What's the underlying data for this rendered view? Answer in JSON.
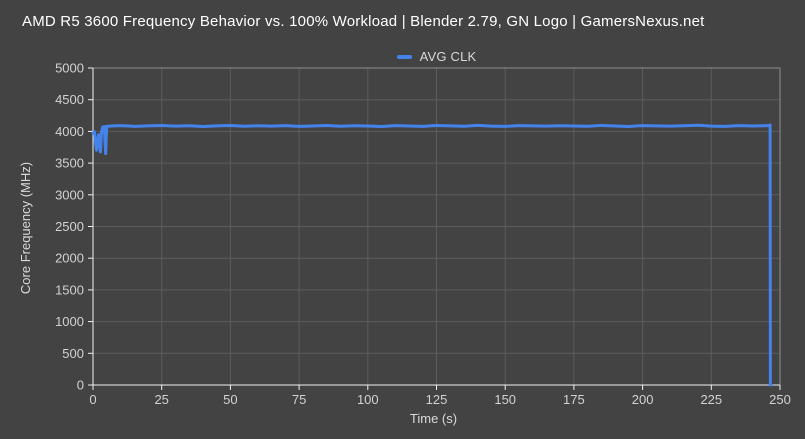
{
  "colors": {
    "background": "#434343",
    "line": "#4583ec",
    "grid": "#5c5c5c",
    "axis_line": "#f2f2f2",
    "plot_border": "#8f8f8f",
    "title_text": "#ffffff",
    "label_text": "#d2d2d2",
    "legend_text": "#d9d9d9"
  },
  "chart_data": {
    "type": "line",
    "title": "AMD R5 3600 Frequency Behavior vs. 100% Workload | Blender 2.79, GN Logo | GamersNexus.net",
    "xlabel": "Time (s)",
    "ylabel": "Core Frequency (MHz)",
    "xlim": [
      0,
      250
    ],
    "ylim": [
      0,
      5000
    ],
    "x_ticks": [
      0,
      25,
      50,
      75,
      100,
      125,
      150,
      175,
      200,
      225,
      250
    ],
    "y_ticks": [
      0,
      500,
      1000,
      1500,
      2000,
      2500,
      3000,
      3500,
      4000,
      4500,
      5000
    ],
    "grid": true,
    "legend": {
      "position": "top-center",
      "entries": [
        "AVG CLK"
      ]
    },
    "series": [
      {
        "name": "AVG CLK",
        "color": "#4583ec",
        "points": [
          [
            0,
            3975
          ],
          [
            0.5,
            3995
          ],
          [
            0.9,
            3820
          ],
          [
            1.3,
            3705
          ],
          [
            1.7,
            3860
          ],
          [
            2,
            3950
          ],
          [
            2.4,
            3790
          ],
          [
            2.7,
            3675
          ],
          [
            3.1,
            3990
          ],
          [
            3.5,
            4068
          ],
          [
            4.1,
            4075
          ],
          [
            4.6,
            3650
          ],
          [
            5,
            4082
          ],
          [
            10,
            4092
          ],
          [
            15,
            4080
          ],
          [
            20,
            4088
          ],
          [
            25,
            4094
          ],
          [
            30,
            4083
          ],
          [
            35,
            4090
          ],
          [
            40,
            4078
          ],
          [
            45,
            4087
          ],
          [
            50,
            4093
          ],
          [
            55,
            4081
          ],
          [
            60,
            4089
          ],
          [
            65,
            4084
          ],
          [
            70,
            4091
          ],
          [
            75,
            4079
          ],
          [
            80,
            4086
          ],
          [
            85,
            4094
          ],
          [
            90,
            4082
          ],
          [
            95,
            4090
          ],
          [
            100,
            4085
          ],
          [
            105,
            4077
          ],
          [
            110,
            4092
          ],
          [
            115,
            4086
          ],
          [
            120,
            4080
          ],
          [
            125,
            4093
          ],
          [
            130,
            4087
          ],
          [
            135,
            4082
          ],
          [
            140,
            4095
          ],
          [
            145,
            4084
          ],
          [
            150,
            4079
          ],
          [
            155,
            4091
          ],
          [
            160,
            4088
          ],
          [
            165,
            4083
          ],
          [
            170,
            4090
          ],
          [
            175,
            4086
          ],
          [
            180,
            4081
          ],
          [
            185,
            4094
          ],
          [
            190,
            4085
          ],
          [
            195,
            4078
          ],
          [
            200,
            4092
          ],
          [
            205,
            4087
          ],
          [
            210,
            4083
          ],
          [
            215,
            4089
          ],
          [
            220,
            4096
          ],
          [
            225,
            4084
          ],
          [
            230,
            4080
          ],
          [
            235,
            4091
          ],
          [
            240,
            4086
          ],
          [
            245,
            4090
          ],
          [
            246.1,
            4096
          ],
          [
            246.4,
            4100
          ],
          [
            246.5,
            0
          ],
          [
            246.8,
            0
          ]
        ]
      }
    ]
  }
}
